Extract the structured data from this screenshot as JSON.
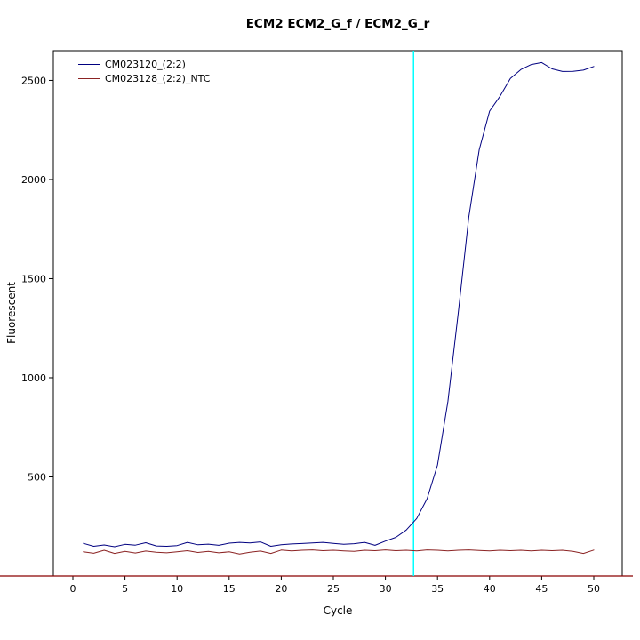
{
  "chart_data": {
    "type": "line",
    "title": "ECM2  ECM2_G_f / ECM2_G_r",
    "xlabel": "Cycle",
    "ylabel": "Fluorescent",
    "xlim": [
      0,
      50
    ],
    "ylim": [
      0,
      2650
    ],
    "xticks": [
      0,
      5,
      10,
      15,
      20,
      25,
      30,
      35,
      40,
      45,
      50
    ],
    "yticks": [
      500,
      1000,
      1500,
      2000,
      2500
    ],
    "grid": false,
    "legend_position": "top-left",
    "x": [
      1,
      2,
      3,
      4,
      5,
      6,
      7,
      8,
      9,
      10,
      11,
      12,
      13,
      14,
      15,
      16,
      17,
      18,
      19,
      20,
      21,
      22,
      23,
      24,
      25,
      26,
      27,
      28,
      29,
      30,
      31,
      32,
      33,
      34,
      35,
      36,
      37,
      38,
      39,
      40,
      41,
      42,
      43,
      44,
      45,
      46,
      47,
      48,
      49,
      50
    ],
    "series": [
      {
        "name": "CM023120_(2:2)",
        "color": "#000080",
        "values": [
          165,
          150,
          157,
          148,
          160,
          156,
          168,
          152,
          150,
          154,
          170,
          158,
          161,
          155,
          166,
          170,
          167,
          172,
          150,
          158,
          162,
          164,
          167,
          170,
          165,
          160,
          163,
          170,
          155,
          176,
          195,
          232,
          290,
          390,
          560,
          880,
          1330,
          1810,
          2150,
          2345,
          2420,
          2510,
          2555,
          2580,
          2590,
          2558,
          2545,
          2546,
          2552,
          2570
        ]
      },
      {
        "name": "CM023128_(2:2)_NTC",
        "color": "#8B2323",
        "values": [
          122,
          115,
          130,
          114,
          124,
          116,
          126,
          120,
          117,
          122,
          128,
          119,
          124,
          117,
          122,
          111,
          120,
          126,
          114,
          131,
          127,
          130,
          132,
          128,
          130,
          127,
          124,
          130,
          128,
          132,
          128,
          130,
          127,
          132,
          130,
          127,
          130,
          132,
          129,
          127,
          130,
          128,
          130,
          127,
          130,
          128,
          130,
          124,
          114,
          131
        ]
      }
    ],
    "threshold_cycle_line": {
      "x": 32.7,
      "color": "#00FFFF"
    },
    "baseline_line": {
      "y": 0,
      "color": "#8B0000"
    }
  }
}
